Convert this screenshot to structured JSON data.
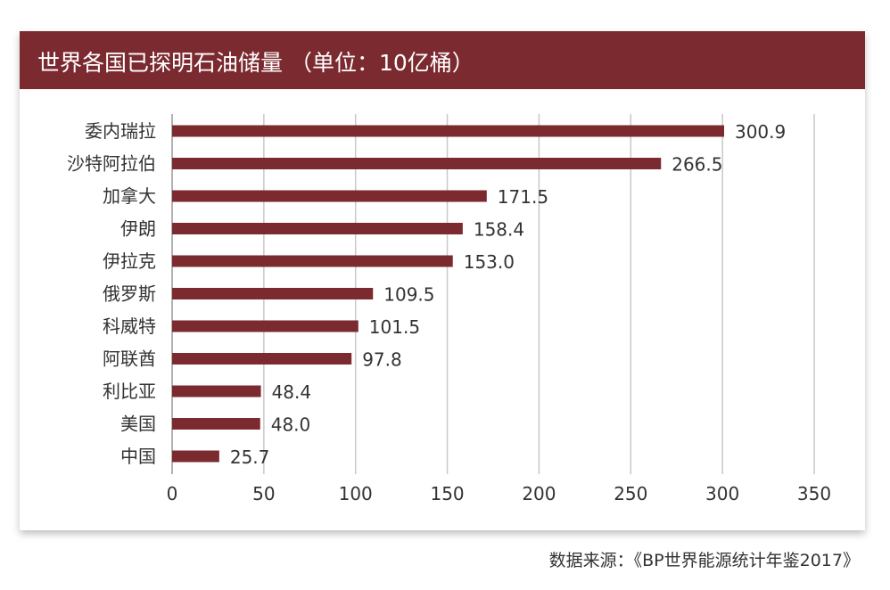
{
  "chart_data": {
    "type": "bar",
    "orientation": "horizontal",
    "title": "世界各国已探明石油储量 （单位：10亿桶）",
    "categories": [
      "委内瑞拉",
      "沙特阿拉伯",
      "加拿大",
      "伊朗",
      "伊拉克",
      "俄罗斯",
      "科威特",
      "阿联酋",
      "利比亚",
      "美国",
      "中国"
    ],
    "values": [
      300.9,
      266.5,
      171.5,
      158.4,
      153.0,
      109.5,
      101.5,
      97.8,
      48.4,
      48.0,
      25.7
    ],
    "value_labels": [
      "300.9",
      "266.5",
      "171.5",
      "158.4",
      "153.0",
      "109.5",
      "101.5",
      "97.8",
      "48.4",
      "48.0",
      "25.7"
    ],
    "xlim": [
      0,
      350
    ],
    "xticks": [
      0,
      50,
      100,
      150,
      200,
      250,
      300,
      350
    ],
    "grid": "vertical",
    "bar_color": "#7b2a30",
    "header_color": "#7b2a30"
  },
  "source": "数据来源：《BP世界能源统计年鉴2017》"
}
